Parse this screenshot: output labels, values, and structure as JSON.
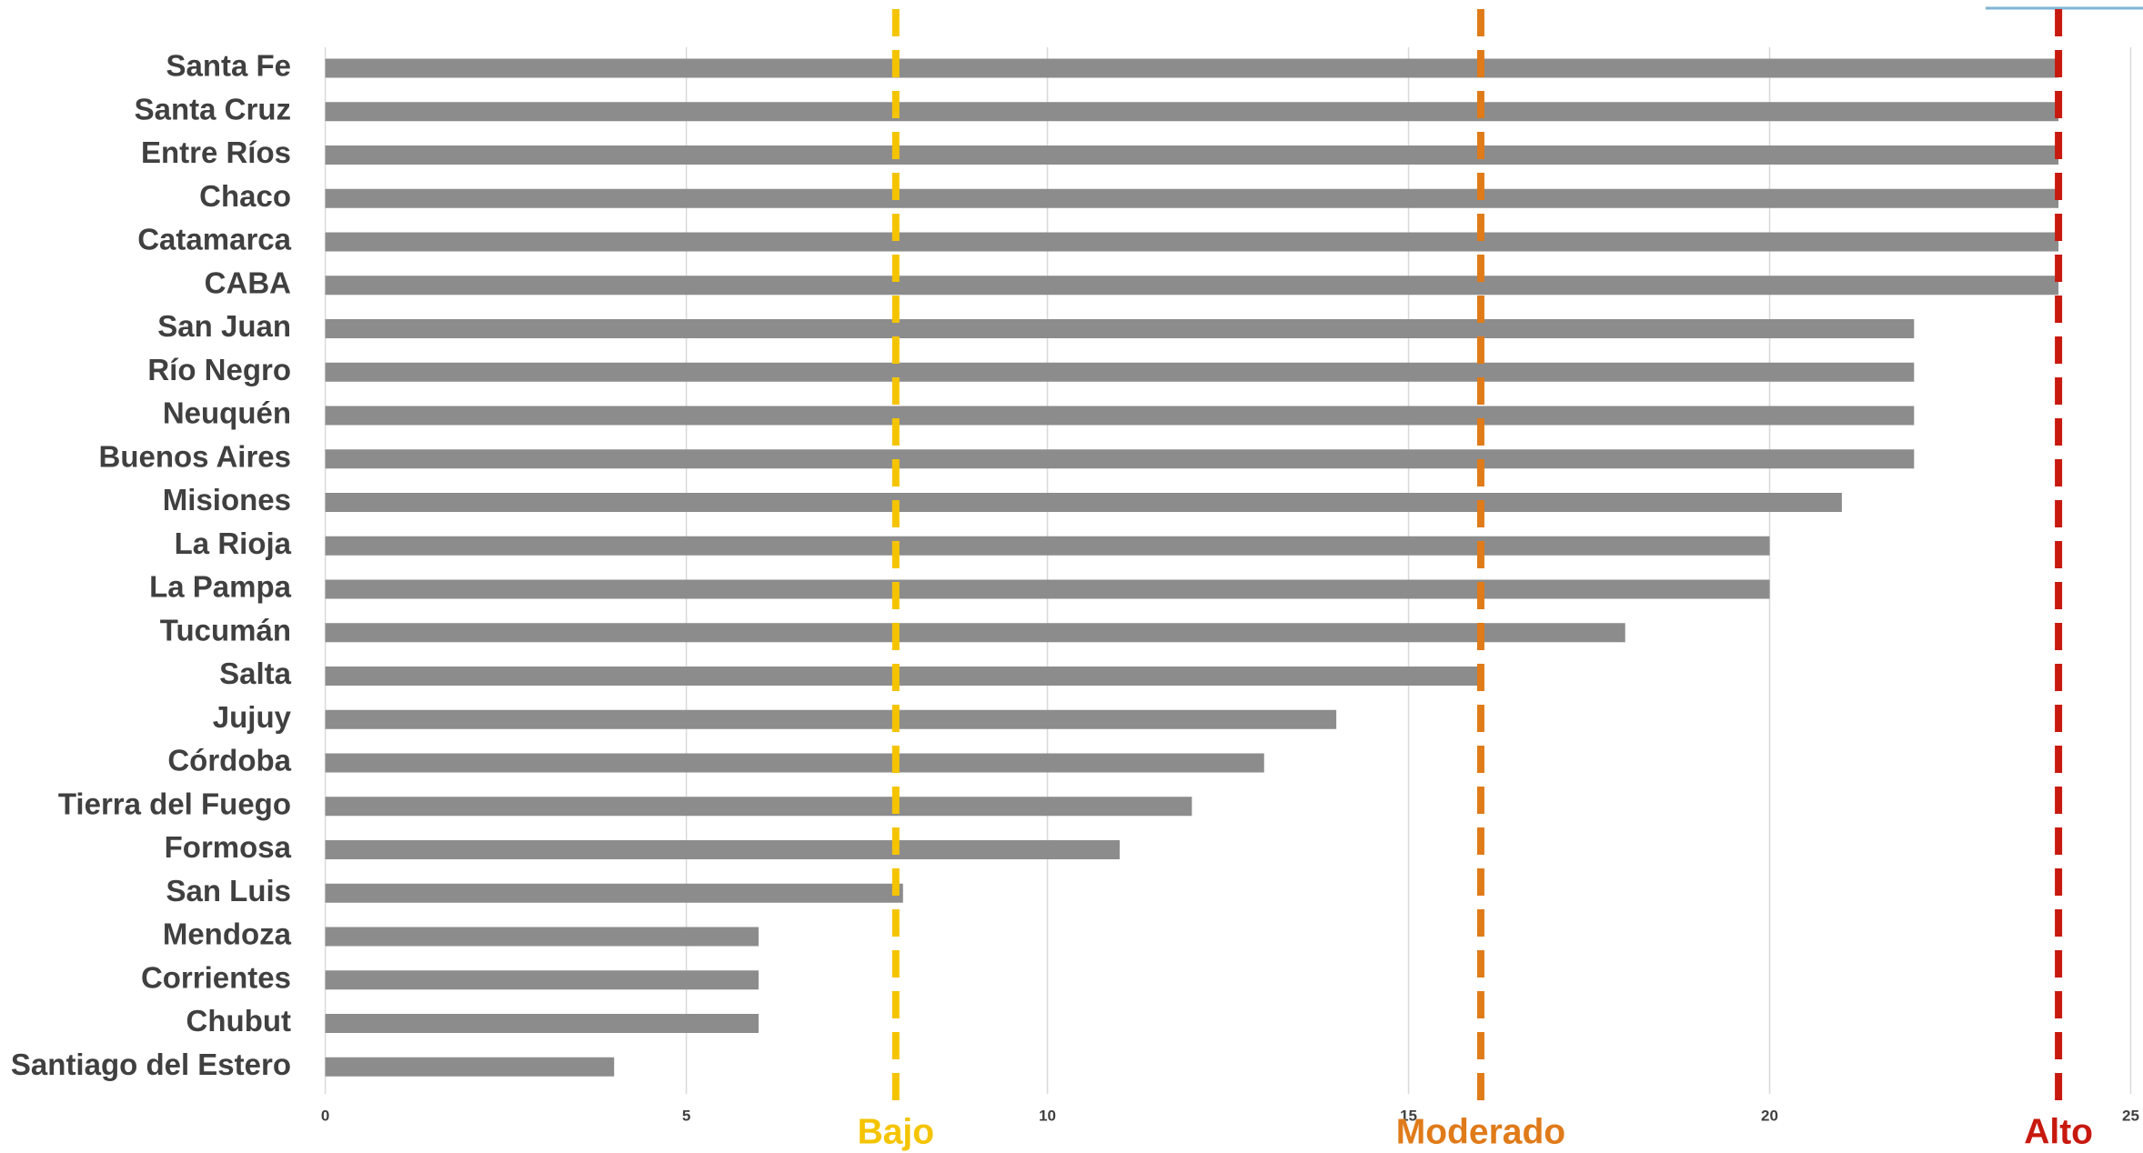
{
  "chart_data": {
    "type": "barh",
    "categories": [
      "Santa Fe",
      "Santa Cruz",
      "Entre Ríos",
      "Chaco",
      "Catamarca",
      "CABA",
      "San Juan",
      "Río Negro",
      "Neuquén",
      "Buenos Aires",
      "Misiones",
      "La Rioja",
      "La Pampa",
      "Tucumán",
      "Salta",
      "Jujuy",
      "Córdoba",
      "Tierra del Fuego",
      "Formosa",
      "San Luis",
      "Mendoza",
      "Corrientes",
      "Chubut",
      "Santiago del Estero"
    ],
    "values": [
      24,
      24,
      24,
      24,
      24,
      24,
      22,
      22,
      22,
      22,
      21,
      20,
      20,
      18,
      16,
      14,
      13,
      12,
      11,
      8,
      6,
      6,
      6,
      4
    ],
    "color": "#8c8c8c",
    "xlim": [
      0,
      25
    ],
    "xticks": [
      0,
      5,
      10,
      15,
      20,
      25
    ],
    "grid": true,
    "reference_lines": [
      {
        "name": "Bajo",
        "value": 7.9,
        "color": "#f5c400"
      },
      {
        "name": "Moderado",
        "value": 16,
        "color": "#e07b1a"
      },
      {
        "name": "Alto",
        "value": 24,
        "color": "#c8190f"
      }
    ]
  }
}
